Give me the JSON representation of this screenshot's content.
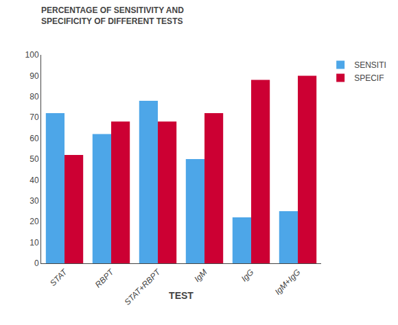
{
  "chart_data": {
    "type": "bar",
    "title": "PERCENTAGE OF SENSITIVITY AND\nSPECIFICITY OF DIFFERENT TESTS",
    "xlabel": "TEST",
    "categories": [
      "STAT",
      "RBPT",
      "STAT+RBPT",
      "IgM",
      "IgG",
      "IgM+IgG"
    ],
    "series": [
      {
        "name": "SENSITI",
        "color": "#4da6e8",
        "values": [
          72,
          62,
          78,
          50,
          22,
          25
        ]
      },
      {
        "name": "SPECIF",
        "color": "#cc0033",
        "values": [
          52,
          68,
          68,
          72,
          88,
          90
        ]
      }
    ],
    "ylim": [
      0,
      100
    ],
    "yticks": [
      0,
      10,
      20,
      30,
      40,
      50,
      60,
      70,
      80,
      90,
      100
    ],
    "grid": false,
    "legend": "right"
  }
}
